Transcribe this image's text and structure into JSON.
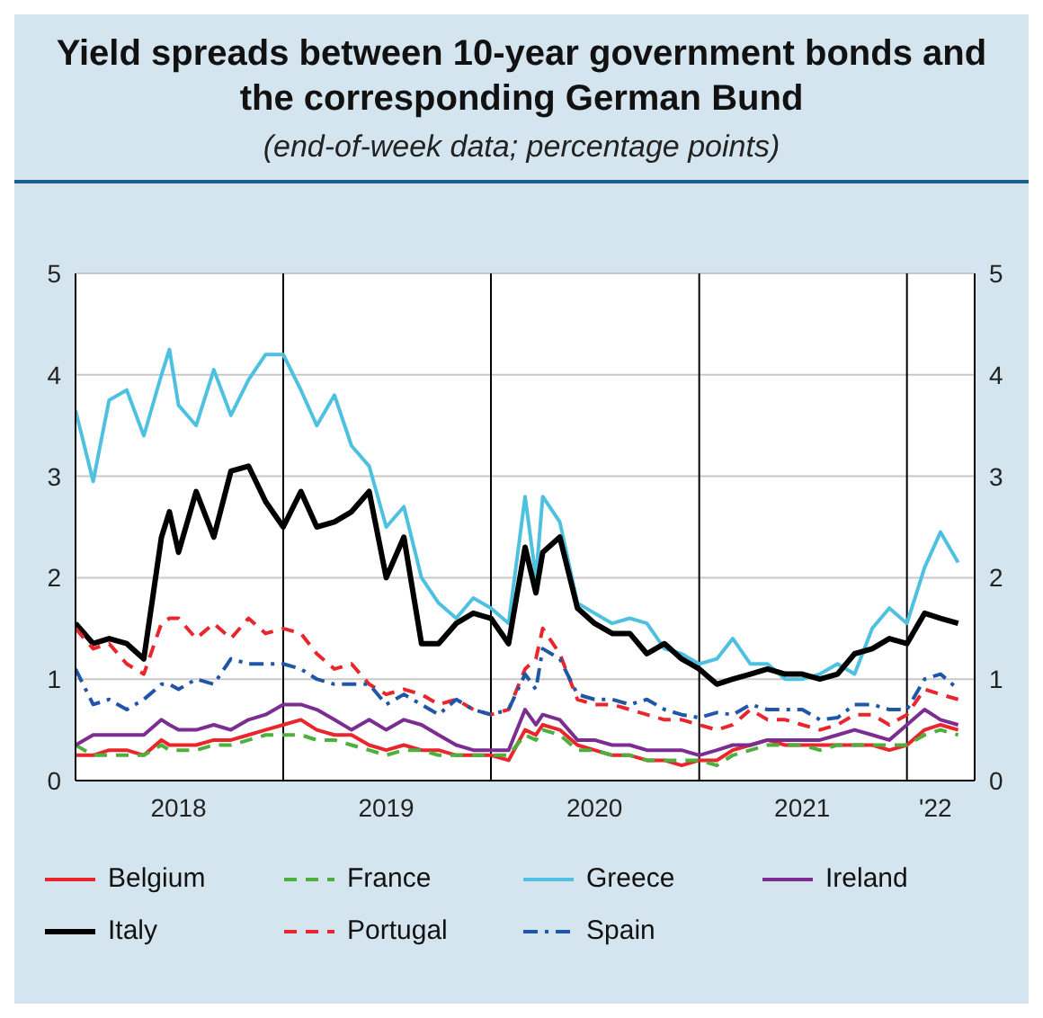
{
  "chart_data": {
    "type": "line",
    "title": "Yield spreads between 10-year government bonds and the corresponding German Bund",
    "subtitle": "(end-of-week data; percentage points)",
    "x": [
      "2018-01-01",
      "2018-02-01",
      "2018-03-01",
      "2018-04-01",
      "2018-05-01",
      "2018-06-01",
      "2018-06-15",
      "2018-07-01",
      "2018-08-01",
      "2018-09-01",
      "2018-10-01",
      "2018-11-01",
      "2018-12-01",
      "2019-01-01",
      "2019-02-01",
      "2019-03-01",
      "2019-04-01",
      "2019-05-01",
      "2019-06-01",
      "2019-07-01",
      "2019-08-01",
      "2019-09-01",
      "2019-10-01",
      "2019-11-01",
      "2019-12-01",
      "2020-01-01",
      "2020-02-01",
      "2020-03-01",
      "2020-03-20",
      "2020-04-01",
      "2020-05-01",
      "2020-06-01",
      "2020-07-01",
      "2020-08-01",
      "2020-09-01",
      "2020-10-01",
      "2020-11-01",
      "2020-12-01",
      "2021-01-01",
      "2021-02-01",
      "2021-03-01",
      "2021-04-01",
      "2021-05-01",
      "2021-06-01",
      "2021-07-01",
      "2021-08-01",
      "2021-09-01",
      "2021-10-01",
      "2021-11-01",
      "2021-12-01",
      "2022-01-01",
      "2022-02-01",
      "2022-03-01",
      "2022-04-01"
    ],
    "series": [
      {
        "name": "Belgium",
        "color": "#e8262b",
        "line_style": "solid",
        "values": [
          0.25,
          0.25,
          0.3,
          0.3,
          0.25,
          0.4,
          0.35,
          0.35,
          0.35,
          0.4,
          0.4,
          0.45,
          0.5,
          0.55,
          0.6,
          0.5,
          0.45,
          0.45,
          0.35,
          0.3,
          0.35,
          0.3,
          0.3,
          0.25,
          0.25,
          0.25,
          0.2,
          0.5,
          0.45,
          0.55,
          0.5,
          0.35,
          0.3,
          0.25,
          0.25,
          0.2,
          0.2,
          0.15,
          0.2,
          0.2,
          0.3,
          0.35,
          0.4,
          0.35,
          0.35,
          0.35,
          0.35,
          0.35,
          0.35,
          0.3,
          0.35,
          0.5,
          0.55,
          0.5
        ]
      },
      {
        "name": "France",
        "color": "#4daf3c",
        "line_style": "dashed",
        "values": [
          0.35,
          0.25,
          0.25,
          0.25,
          0.25,
          0.35,
          0.3,
          0.3,
          0.3,
          0.35,
          0.35,
          0.4,
          0.45,
          0.45,
          0.45,
          0.4,
          0.4,
          0.35,
          0.3,
          0.25,
          0.3,
          0.3,
          0.25,
          0.25,
          0.25,
          0.25,
          0.25,
          0.45,
          0.4,
          0.5,
          0.45,
          0.3,
          0.3,
          0.25,
          0.25,
          0.2,
          0.2,
          0.2,
          0.2,
          0.15,
          0.25,
          0.3,
          0.35,
          0.35,
          0.35,
          0.3,
          0.35,
          0.35,
          0.35,
          0.35,
          0.35,
          0.45,
          0.5,
          0.45
        ]
      },
      {
        "name": "Greece",
        "color": "#4fc1e0",
        "line_style": "solid",
        "values": [
          3.65,
          2.95,
          3.75,
          3.85,
          3.4,
          4.0,
          4.25,
          3.7,
          3.5,
          4.05,
          3.6,
          3.95,
          4.2,
          4.2,
          3.85,
          3.5,
          3.8,
          3.3,
          3.1,
          2.5,
          2.7,
          2.0,
          1.75,
          1.6,
          1.8,
          1.7,
          1.55,
          2.8,
          2.0,
          2.8,
          2.55,
          1.75,
          1.65,
          1.55,
          1.6,
          1.55,
          1.3,
          1.25,
          1.15,
          1.2,
          1.4,
          1.15,
          1.15,
          1.0,
          1.0,
          1.05,
          1.15,
          1.05,
          1.5,
          1.7,
          1.55,
          2.1,
          2.45,
          2.15
        ]
      },
      {
        "name": "Ireland",
        "color": "#7b2d91",
        "line_style": "solid",
        "values": [
          0.35,
          0.45,
          0.45,
          0.45,
          0.45,
          0.6,
          0.55,
          0.5,
          0.5,
          0.55,
          0.5,
          0.6,
          0.65,
          0.75,
          0.75,
          0.7,
          0.6,
          0.5,
          0.6,
          0.5,
          0.6,
          0.55,
          0.45,
          0.35,
          0.3,
          0.3,
          0.3,
          0.7,
          0.55,
          0.65,
          0.6,
          0.4,
          0.4,
          0.35,
          0.35,
          0.3,
          0.3,
          0.3,
          0.25,
          0.3,
          0.35,
          0.35,
          0.4,
          0.4,
          0.4,
          0.4,
          0.45,
          0.5,
          0.45,
          0.4,
          0.55,
          0.7,
          0.6,
          0.55
        ]
      },
      {
        "name": "Italy",
        "color": "#000000",
        "line_style": "solid",
        "values": [
          1.55,
          1.35,
          1.4,
          1.35,
          1.2,
          2.4,
          2.65,
          2.25,
          2.85,
          2.4,
          3.05,
          3.1,
          2.75,
          2.5,
          2.85,
          2.5,
          2.55,
          2.65,
          2.85,
          2.0,
          2.4,
          1.35,
          1.35,
          1.55,
          1.65,
          1.6,
          1.35,
          2.3,
          1.85,
          2.25,
          2.4,
          1.7,
          1.55,
          1.45,
          1.45,
          1.25,
          1.35,
          1.2,
          1.1,
          0.95,
          1.0,
          1.05,
          1.1,
          1.05,
          1.05,
          1.0,
          1.05,
          1.25,
          1.3,
          1.4,
          1.35,
          1.65,
          1.6,
          1.55
        ]
      },
      {
        "name": "Portugal",
        "color": "#e8262b",
        "line_style": "dashed",
        "values": [
          1.5,
          1.3,
          1.35,
          1.15,
          1.05,
          1.55,
          1.6,
          1.6,
          1.4,
          1.55,
          1.4,
          1.6,
          1.45,
          1.5,
          1.45,
          1.25,
          1.1,
          1.15,
          0.95,
          0.85,
          0.9,
          0.85,
          0.75,
          0.8,
          0.7,
          0.65,
          0.7,
          1.1,
          1.2,
          1.5,
          1.25,
          0.8,
          0.75,
          0.75,
          0.7,
          0.65,
          0.6,
          0.6,
          0.55,
          0.5,
          0.55,
          0.7,
          0.6,
          0.6,
          0.55,
          0.5,
          0.55,
          0.65,
          0.65,
          0.55,
          0.65,
          0.9,
          0.85,
          0.8
        ]
      },
      {
        "name": "Spain",
        "color": "#1f56a8",
        "line_style": "dotted",
        "values": [
          1.1,
          0.75,
          0.8,
          0.7,
          0.8,
          0.95,
          0.95,
          0.9,
          1.0,
          0.95,
          1.2,
          1.15,
          1.15,
          1.15,
          1.1,
          1.0,
          0.95,
          0.95,
          0.95,
          0.75,
          0.85,
          0.75,
          0.65,
          0.8,
          0.7,
          0.65,
          0.7,
          1.05,
          0.9,
          1.3,
          1.2,
          0.85,
          0.8,
          0.8,
          0.75,
          0.8,
          0.7,
          0.65,
          0.62,
          0.67,
          0.65,
          0.75,
          0.7,
          0.7,
          0.7,
          0.6,
          0.62,
          0.75,
          0.75,
          0.7,
          0.7,
          1.0,
          1.05,
          0.9
        ]
      }
    ],
    "xlim": [
      "2018-01-01",
      "2022-04-30"
    ],
    "xticks": [
      {
        "value": "2018-07-01",
        "label": "2018"
      },
      {
        "value": "2019-07-01",
        "label": "2019"
      },
      {
        "value": "2020-07-01",
        "label": "2020"
      },
      {
        "value": "2021-07-01",
        "label": "2021"
      },
      {
        "value": "2022-02-20",
        "label": "'22"
      }
    ],
    "ref_lines": [
      {
        "axis": "x",
        "value": "2019-01-01",
        "color": "#000000"
      },
      {
        "axis": "x",
        "value": "2020-01-01",
        "color": "#000000"
      },
      {
        "axis": "x",
        "value": "2021-01-01",
        "color": "#000000"
      },
      {
        "axis": "x",
        "value": "2022-01-01",
        "color": "#000000"
      }
    ],
    "ylim": [
      0,
      5
    ],
    "yticks": [
      0,
      1,
      2,
      3,
      4,
      5
    ],
    "y2lim": [
      0,
      5
    ],
    "y2ticks": [
      0,
      1,
      2,
      3,
      4,
      5
    ],
    "grid": "y",
    "legend": "bottom"
  }
}
